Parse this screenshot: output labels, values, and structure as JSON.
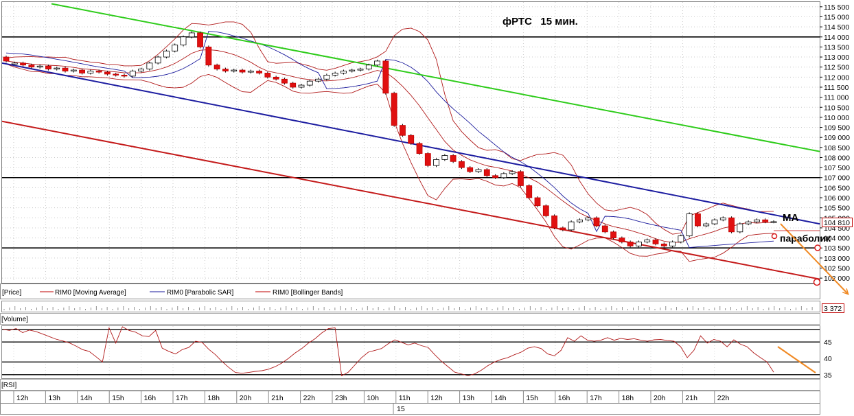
{
  "chart_data": {
    "type": "candlestick",
    "title": "фРТС   15 мин.",
    "price_axis": {
      "ylim": [
        101800,
        115700
      ],
      "ticks": [
        "115 500",
        "115 000",
        "114 500",
        "114 000",
        "113 500",
        "113 000",
        "112 500",
        "112 000",
        "111 500",
        "111 000",
        "110 500",
        "110 000",
        "109 500",
        "109 000",
        "108 500",
        "108 000",
        "107 500",
        "107 000",
        "106 500",
        "106 000",
        "105 500",
        "105 000",
        "104 500",
        "104 000",
        "103 500",
        "103 000",
        "102 500",
        "102 000"
      ],
      "last_price_label": "104 810"
    },
    "rsi_axis": {
      "ticks": [
        "45",
        "40",
        "35"
      ],
      "ylim": [
        34.5,
        48.5
      ]
    },
    "volume_label": "3 372",
    "panel_labels": {
      "price": "[Price]",
      "volume": "[Volume]",
      "rsi": "[RSI]"
    },
    "legend": [
      {
        "name": "RIM0 [Moving Average]",
        "color": "#c00000"
      },
      {
        "name": "RIM0 [Parabolic SAR]",
        "color": "#1a1a9c"
      },
      {
        "name": "RIM0 [Bollinger Bands]",
        "color": "#c00000"
      }
    ],
    "time_axis": {
      "labels": [
        "12h",
        "13h",
        "14h",
        "15h",
        "16h",
        "17h",
        "18h",
        "20h",
        "21h",
        "22h",
        "23h",
        "10h",
        "11h",
        "12h",
        "13h",
        "14h",
        "15h",
        "16h",
        "17h",
        "18h",
        "20h",
        "21h",
        "22h"
      ],
      "day_label": "15"
    },
    "horizontal_levels": [
      114000,
      107000,
      103500
    ],
    "annotations": [
      "MA",
      "параболик"
    ],
    "closes": [
      112800,
      112700,
      112600,
      112500,
      112550,
      112400,
      112450,
      112300,
      112350,
      112200,
      112300,
      112250,
      112150,
      112100,
      112050,
      112300,
      112400,
      112700,
      113000,
      113300,
      113600,
      114000,
      114200,
      113500,
      112600,
      112400,
      112300,
      112350,
      112250,
      112300,
      112200,
      112000,
      111900,
      111700,
      111500,
      111600,
      111800,
      111900,
      112100,
      112200,
      112300,
      112350,
      112400,
      112600,
      112800,
      111200,
      109600,
      109100,
      108700,
      108200,
      107600,
      107900,
      108100,
      107800,
      107500,
      107300,
      107400,
      107100,
      107000,
      107200,
      107300,
      106600,
      106000,
      105600,
      105100,
      104500,
      104400,
      104800,
      104900,
      105000,
      104600,
      104300,
      104000,
      103800,
      103600,
      103800,
      103900,
      103700,
      103600,
      103800,
      104100,
      105200,
      104600,
      104700,
      104900,
      105000,
      104300,
      104700,
      104800,
      104900,
      104800,
      104810
    ],
    "opens": [
      113000,
      112700,
      112700,
      112600,
      112500,
      112550,
      112400,
      112450,
      112300,
      112350,
      112200,
      112300,
      112250,
      112150,
      112100,
      112050,
      112300,
      112400,
      112700,
      113000,
      113300,
      113600,
      114000,
      114200,
      113500,
      112600,
      112400,
      112300,
      112350,
      112250,
      112300,
      112200,
      112000,
      111900,
      111700,
      111500,
      111600,
      111800,
      111900,
      112100,
      112200,
      112300,
      112350,
      112400,
      112600,
      112800,
      111200,
      109600,
      109100,
      108700,
      108200,
      107600,
      107900,
      108100,
      107800,
      107500,
      107300,
      107400,
      107100,
      107000,
      107200,
      107300,
      106600,
      106000,
      105600,
      105100,
      104500,
      104400,
      104800,
      104900,
      105000,
      104600,
      104300,
      104000,
      103800,
      103600,
      103800,
      103900,
      103700,
      103600,
      103800,
      104100,
      105200,
      104600,
      104700,
      104900,
      105000,
      104300,
      104700,
      104800,
      104900,
      104800
    ],
    "rsi": [
      47.8,
      47.5,
      48.0,
      46.9,
      47.6,
      47.2,
      46.5,
      45.8,
      45.1,
      44.6,
      44.1,
      43.2,
      42.2,
      41.7,
      40.3,
      38.8,
      48.2,
      44.0,
      48.5,
      47.5,
      47.0,
      46.0,
      45.8,
      47.5,
      42.6,
      41.7,
      41.0,
      42.2,
      42.8,
      44.5,
      44.2,
      42.3,
      40.8,
      38.9,
      37.3,
      35.9,
      35.7,
      35.9,
      36.2,
      36.4,
      36.8,
      37.5,
      38.5,
      39.8,
      41.3,
      42.5,
      44.0,
      45.2,
      46.8,
      48.0,
      48.2,
      35.0,
      36.0,
      38.0,
      40.0,
      41.5,
      42.0,
      42.5,
      43.8,
      44.9,
      44.2,
      43.5,
      44.0,
      43.3,
      42.8,
      40.8,
      39.0,
      37.5,
      36.0,
      35.5,
      35.0,
      35.5,
      36.5,
      37.8,
      38.8,
      39.5,
      40.0,
      40.8,
      41.5,
      42.6,
      43.0,
      42.5,
      41.0,
      40.5,
      42.0,
      45.5,
      44.5,
      46.0,
      44.8,
      44.5,
      44.8,
      45.5,
      44.8,
      45.3,
      45.0,
      45.2,
      44.8,
      44.5,
      44.9,
      45.0,
      44.7,
      44.5,
      43.0,
      40.0,
      42.0,
      46.0,
      44.0,
      45.0,
      44.5,
      43.0,
      44.9,
      43.7,
      43.0,
      41.3,
      40.0,
      38.8,
      36.0
    ]
  }
}
